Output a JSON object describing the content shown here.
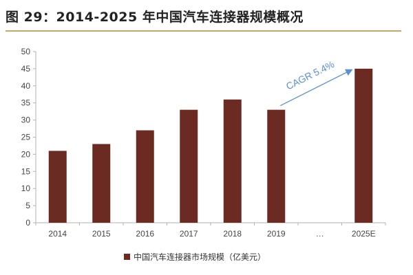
{
  "title": "图 29：2014-2025 年中国汽车连接器规模概况",
  "colors": {
    "bar": "#6b2a22",
    "axis": "#b0b0b0",
    "tick_text": "#444444",
    "title_rule": "#c8a86a",
    "annotation": "#5b8fd0"
  },
  "chart_data": {
    "type": "bar",
    "categories": [
      "2014",
      "2015",
      "2016",
      "2017",
      "2018",
      "2019",
      "…",
      "2025E"
    ],
    "series": [
      {
        "name": "中国汽车连接器市场规模（亿美元）",
        "values": [
          21,
          23,
          27,
          33,
          36,
          33,
          null,
          45
        ]
      }
    ],
    "ylim": [
      0,
      50
    ],
    "yticks": [
      0,
      5,
      10,
      15,
      20,
      25,
      30,
      35,
      40,
      45,
      50
    ],
    "grid": false,
    "legend": "bottom",
    "annotation": {
      "text": "CAGR 5.4%",
      "from_category": "2019",
      "to_category": "2025E"
    }
  }
}
